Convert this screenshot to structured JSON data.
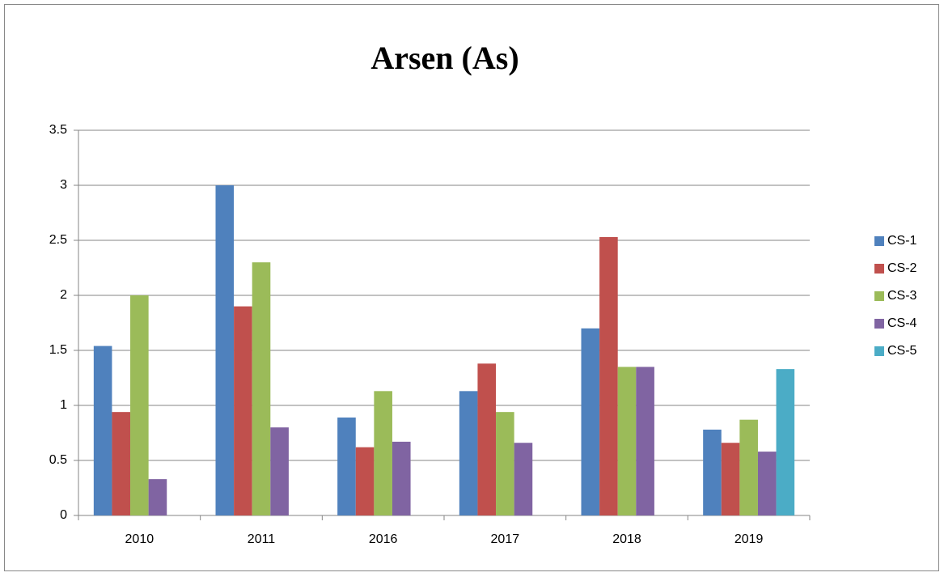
{
  "chart_data": {
    "type": "bar",
    "title": "Arsen (As)",
    "categories": [
      "2010",
      "2011",
      "2016",
      "2017",
      "2018",
      "2019"
    ],
    "series": [
      {
        "name": "CS-1",
        "color": "#4f81bd",
        "values": [
          1.54,
          3.0,
          0.89,
          1.13,
          1.7,
          0.78
        ]
      },
      {
        "name": "CS-2",
        "color": "#c0504d",
        "values": [
          0.94,
          1.9,
          0.62,
          1.38,
          2.53,
          0.66
        ]
      },
      {
        "name": "CS-3",
        "color": "#9bbb59",
        "values": [
          2.0,
          2.3,
          1.13,
          0.94,
          1.35,
          0.87
        ]
      },
      {
        "name": "CS-4",
        "color": "#8064a2",
        "values": [
          0.33,
          0.8,
          0.67,
          0.66,
          1.35,
          0.58
        ]
      },
      {
        "name": "CS-5",
        "color": "#4bacc6",
        "values": [
          null,
          null,
          null,
          null,
          null,
          1.33
        ]
      }
    ],
    "ylim": [
      0,
      3.5
    ],
    "yticks": [
      0,
      0.5,
      1,
      1.5,
      2,
      2.5,
      3,
      3.5
    ],
    "grid": true,
    "legend": "right"
  }
}
